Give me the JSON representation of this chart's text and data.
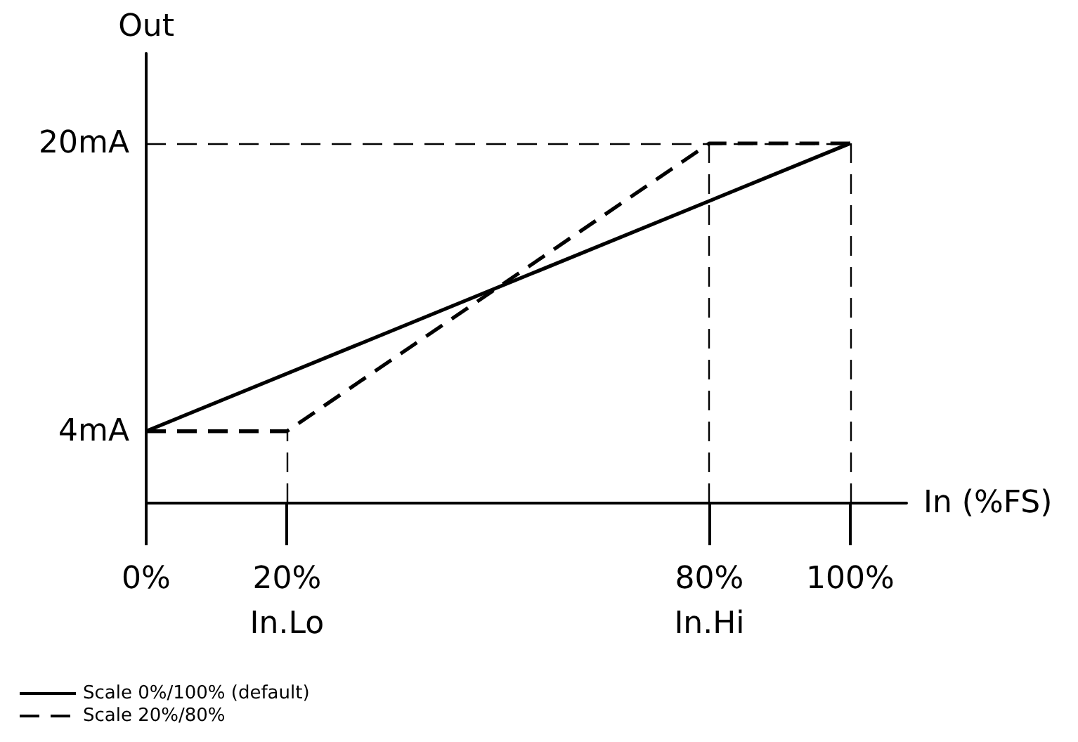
{
  "chart_data": {
    "type": "line",
    "xlabel": "In (%FS)",
    "ylabel": "Out",
    "xlim": [
      0,
      108
    ],
    "xticks": [
      {
        "value": 0,
        "label": "0%"
      },
      {
        "value": 20,
        "label": "20%\nIn.Lo"
      },
      {
        "value": 80,
        "label": "80%\nIn.Hi"
      },
      {
        "value": 100,
        "label": "100%"
      }
    ],
    "ylim": [
      0,
      25
    ],
    "yticks": [
      {
        "value": 4,
        "label": "4mA"
      },
      {
        "value": 20,
        "label": "20mA"
      }
    ],
    "series": [
      {
        "name": "Scale 0%/100% (default)",
        "color": "#000000",
        "x": [
          0,
          100
        ],
        "values": [
          4,
          20
        ],
        "line_style": "solid"
      },
      {
        "name": "Scale 20%/80%",
        "color": "#000000",
        "x": [
          0,
          20,
          80,
          100
        ],
        "values": [
          4,
          4,
          20,
          20
        ],
        "line_style": "dashed"
      }
    ],
    "ref_lines": [
      {
        "axis": "x",
        "value": 20,
        "color": "#000000",
        "line_style": "dashed"
      },
      {
        "axis": "x",
        "value": 80,
        "color": "#000000",
        "line_style": "dashed"
      },
      {
        "axis": "x",
        "value": 100,
        "color": "#000000",
        "line_style": "dashed"
      },
      {
        "axis": "y",
        "value": 4,
        "color": "#000000",
        "line_style": "dashed"
      },
      {
        "axis": "y",
        "value": 20,
        "color": "#000000",
        "line_style": "dashed"
      }
    ],
    "marker": "none",
    "grid": false,
    "legend": "bottom left"
  }
}
